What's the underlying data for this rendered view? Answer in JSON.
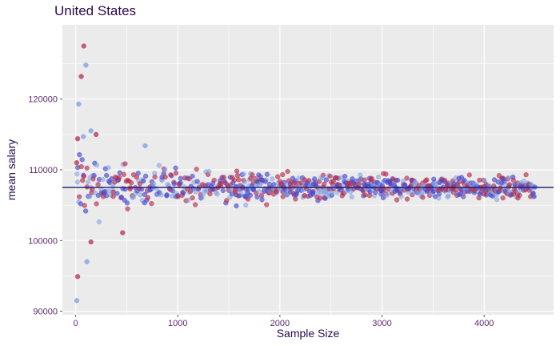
{
  "chart_data": {
    "type": "scatter",
    "title": "United States",
    "xlabel": "Sample Size",
    "ylabel": "mean salary",
    "xlim": [
      -130,
      4680
    ],
    "ylim": [
      89500,
      130500
    ],
    "x_ticks": [
      0,
      1000,
      2000,
      3000,
      4000
    ],
    "y_ticks": [
      90000,
      100000,
      110000,
      120000
    ],
    "grid": true,
    "reference_line": {
      "y": 107500,
      "color": "#1a1a6e"
    },
    "point_colors": [
      "#b5304f",
      "#4a4ad0",
      "#7f9fe0"
    ],
    "notable_points": [
      {
        "x": 80,
        "y": 127500
      },
      {
        "x": 100,
        "y": 124800
      },
      {
        "x": 55,
        "y": 123200
      },
      {
        "x": 30,
        "y": 119300
      },
      {
        "x": 20,
        "y": 114400
      },
      {
        "x": 75,
        "y": 114700
      },
      {
        "x": 10,
        "y": 111000
      },
      {
        "x": 150,
        "y": 115500
      },
      {
        "x": 200,
        "y": 115000
      },
      {
        "x": 680,
        "y": 113400
      },
      {
        "x": 150,
        "y": 99800
      },
      {
        "x": 110,
        "y": 97000
      },
      {
        "x": 20,
        "y": 94900
      },
      {
        "x": 10,
        "y": 91500
      },
      {
        "x": 460,
        "y": 101100
      }
    ],
    "band": {
      "center": 107500,
      "x_start": 10,
      "x_end": 4500,
      "step": 14,
      "envelope_k": 62000,
      "envelope_floor": 350
    }
  }
}
